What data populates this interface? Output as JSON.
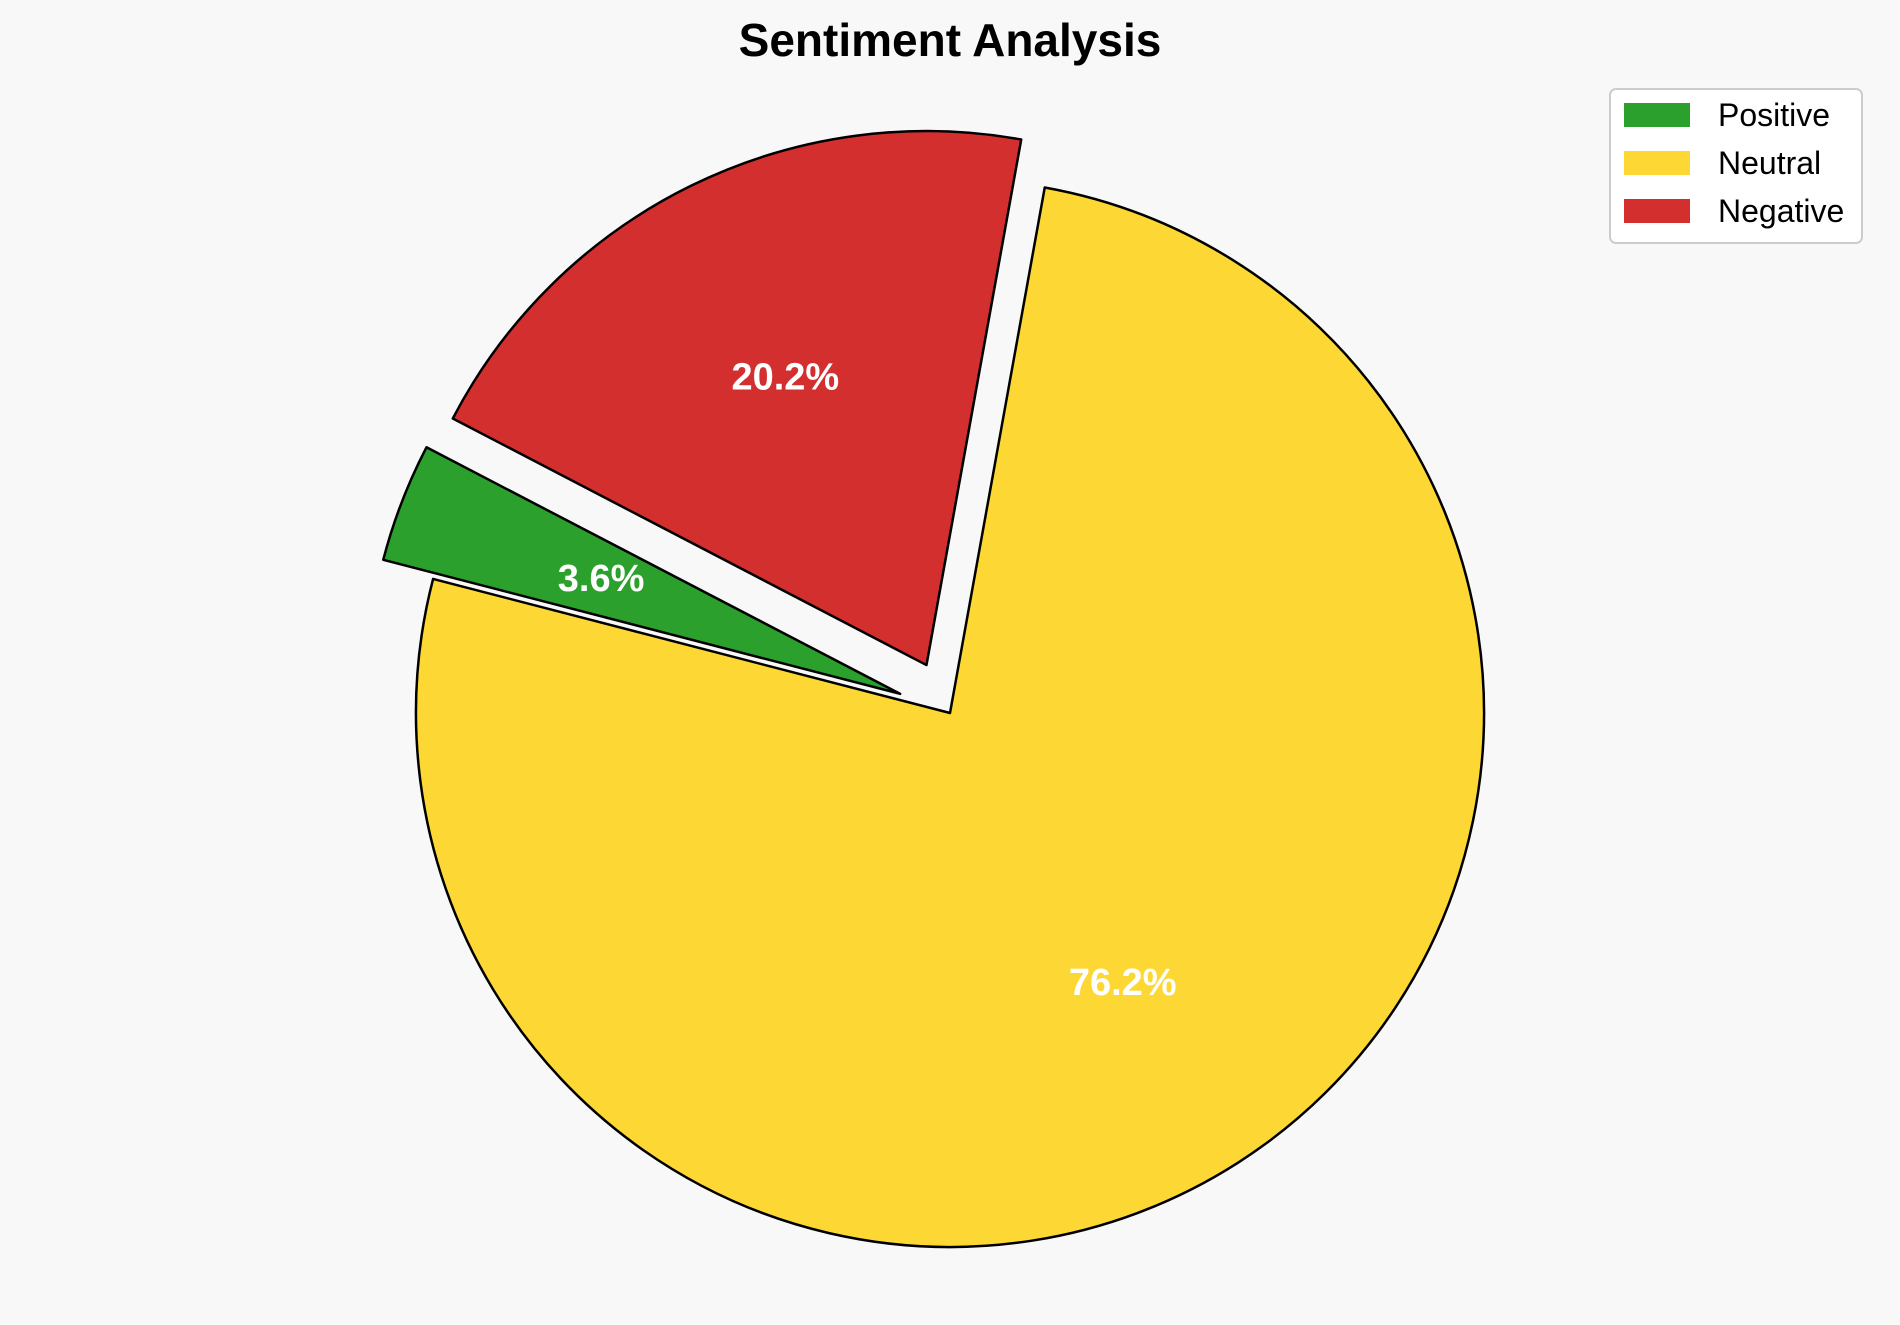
{
  "chart_data": {
    "type": "pie",
    "title": "Sentiment Analysis",
    "categories": [
      "Positive",
      "Neutral",
      "Negative"
    ],
    "values": [
      3.6,
      76.2,
      20.2
    ],
    "labels": [
      "3.6%",
      "76.2%",
      "20.2%"
    ],
    "colors": [
      "#2ca02c",
      "#fdd835",
      "#d32f2f"
    ],
    "explode": [
      0.1,
      0,
      0.1
    ],
    "start_angle_deg": 152.5,
    "legend_position": "top-right"
  }
}
